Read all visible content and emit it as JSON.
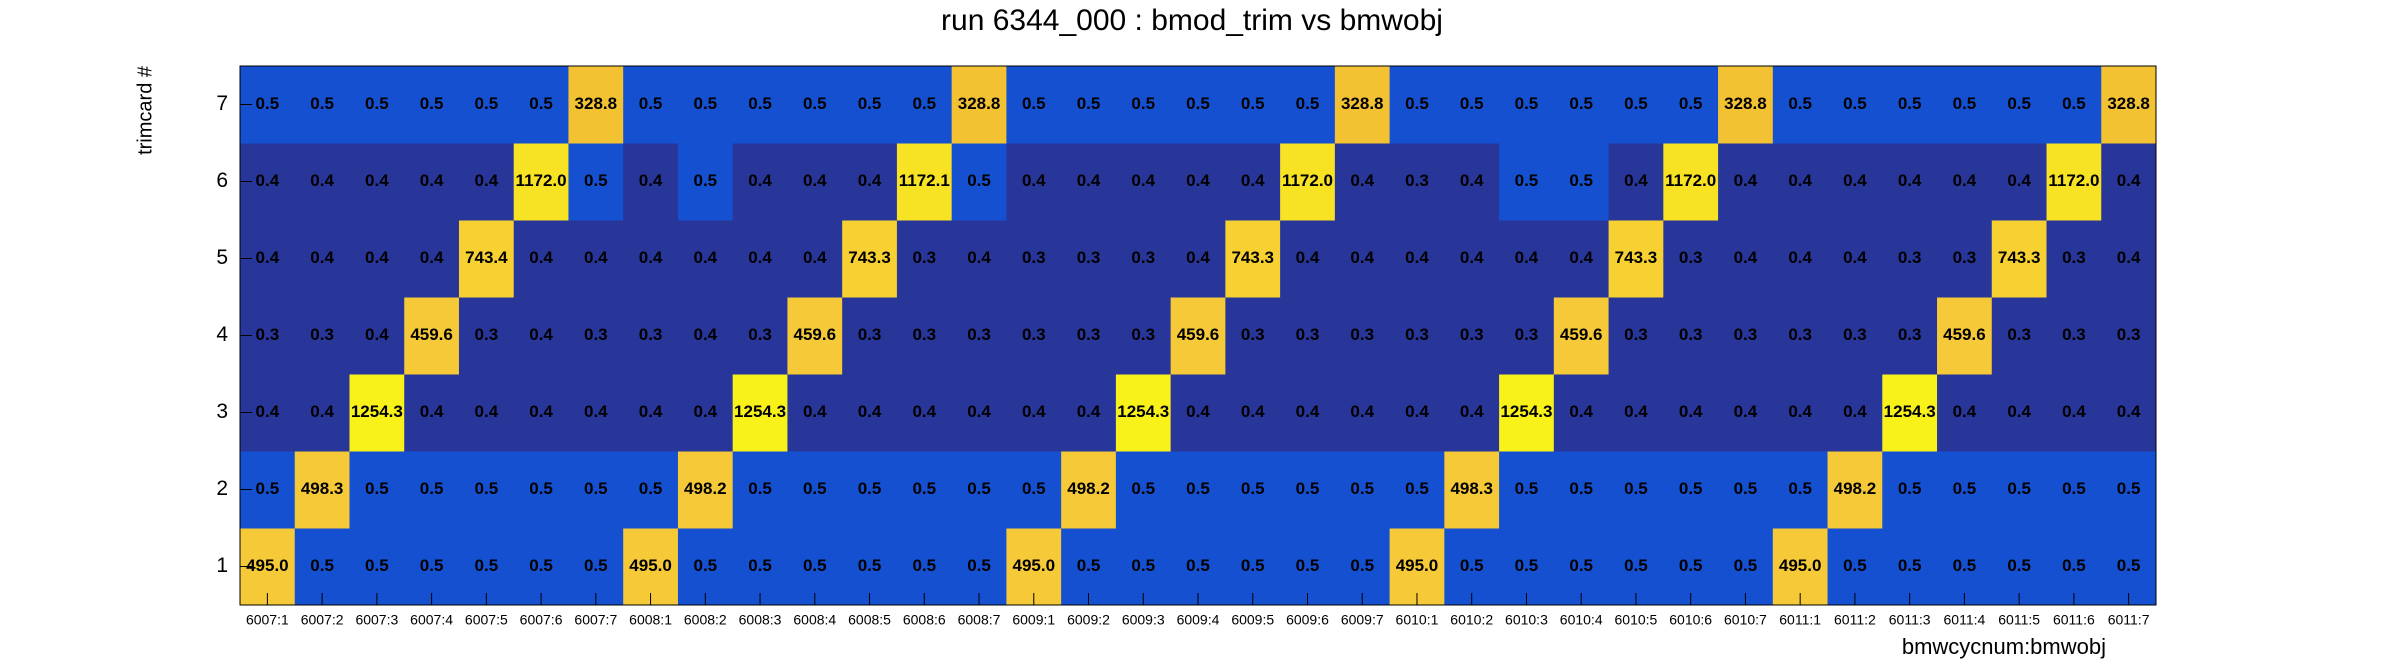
{
  "chart_data": {
    "type": "heatmap",
    "title": "run 6344_000 : bmod_trim vs bmwobj",
    "x_label": "bmwcycnum:bmwobj",
    "y_label": "trimcard #",
    "x_categories": [
      "6007:1",
      "6007:2",
      "6007:3",
      "6007:4",
      "6007:5",
      "6007:6",
      "6007:7",
      "6008:1",
      "6008:2",
      "6008:3",
      "6008:4",
      "6008:5",
      "6008:6",
      "6008:7",
      "6009:1",
      "6009:2",
      "6009:3",
      "6009:4",
      "6009:5",
      "6009:6",
      "6009:7",
      "6010:1",
      "6010:2",
      "6010:3",
      "6010:4",
      "6010:5",
      "6010:6",
      "6010:7",
      "6011:1",
      "6011:2",
      "6011:3",
      "6011:4",
      "6011:5",
      "6011:6",
      "6011:7"
    ],
    "y_categories": [
      "1",
      "2",
      "3",
      "4",
      "5",
      "6",
      "7"
    ],
    "values": [
      [
        495.0,
        0.5,
        0.5,
        0.5,
        0.5,
        0.5,
        0.5,
        495.0,
        0.5,
        0.5,
        0.5,
        0.5,
        0.5,
        0.5,
        495.0,
        0.5,
        0.5,
        0.5,
        0.5,
        0.5,
        0.5,
        495.0,
        0.5,
        0.5,
        0.5,
        0.5,
        0.5,
        0.5,
        495.0,
        0.5,
        0.5,
        0.5,
        0.5,
        0.5,
        0.5
      ],
      [
        0.5,
        498.3,
        0.5,
        0.5,
        0.5,
        0.5,
        0.5,
        0.5,
        498.2,
        0.5,
        0.5,
        0.5,
        0.5,
        0.5,
        0.5,
        498.2,
        0.5,
        0.5,
        0.5,
        0.5,
        0.5,
        0.5,
        498.3,
        0.5,
        0.5,
        0.5,
        0.5,
        0.5,
        0.5,
        498.2,
        0.5,
        0.5,
        0.5,
        0.5,
        0.5
      ],
      [
        0.4,
        0.4,
        1254.3,
        0.4,
        0.4,
        0.4,
        0.4,
        0.4,
        0.4,
        1254.3,
        0.4,
        0.4,
        0.4,
        0.4,
        0.4,
        0.4,
        1254.3,
        0.4,
        0.4,
        0.4,
        0.4,
        0.4,
        0.4,
        1254.3,
        0.4,
        0.4,
        0.4,
        0.4,
        0.4,
        0.4,
        1254.3,
        0.4,
        0.4,
        0.4,
        0.4
      ],
      [
        0.3,
        0.3,
        0.4,
        459.6,
        0.3,
        0.4,
        0.3,
        0.3,
        0.4,
        0.3,
        459.6,
        0.3,
        0.3,
        0.3,
        0.3,
        0.3,
        0.3,
        459.6,
        0.3,
        0.3,
        0.3,
        0.3,
        0.3,
        0.3,
        459.6,
        0.3,
        0.3,
        0.3,
        0.3,
        0.3,
        0.3,
        459.6,
        0.3,
        0.3,
        0.3
      ],
      [
        0.4,
        0.4,
        0.4,
        0.4,
        743.4,
        0.4,
        0.4,
        0.4,
        0.4,
        0.4,
        0.4,
        743.3,
        0.3,
        0.4,
        0.3,
        0.3,
        0.3,
        0.4,
        743.3,
        0.4,
        0.4,
        0.4,
        0.4,
        0.4,
        0.4,
        743.3,
        0.3,
        0.4,
        0.4,
        0.4,
        0.3,
        0.3,
        743.3,
        0.3,
        0.4
      ],
      [
        0.4,
        0.4,
        0.4,
        0.4,
        0.4,
        1172.0,
        0.5,
        0.4,
        0.5,
        0.4,
        0.4,
        0.4,
        1172.1,
        0.5,
        0.4,
        0.4,
        0.4,
        0.4,
        0.4,
        1172.0,
        0.4,
        0.3,
        0.4,
        0.5,
        0.5,
        0.4,
        1172.0,
        0.4,
        0.4,
        0.4,
        0.4,
        0.4,
        0.4,
        1172.0,
        0.4
      ],
      [
        0.5,
        0.5,
        0.5,
        0.5,
        0.5,
        0.5,
        328.8,
        0.5,
        0.5,
        0.5,
        0.5,
        0.5,
        0.5,
        328.8,
        0.5,
        0.5,
        0.5,
        0.5,
        0.5,
        0.5,
        328.8,
        0.5,
        0.5,
        0.5,
        0.5,
        0.5,
        0.5,
        328.8,
        0.5,
        0.5,
        0.5,
        0.5,
        0.5,
        0.5,
        328.8
      ]
    ],
    "value_labels": [
      [
        "495.0",
        "0.5",
        "0.5",
        "0.5",
        "0.5",
        "0.5",
        "0.5",
        "495.0",
        "0.5",
        "0.5",
        "0.5",
        "0.5",
        "0.5",
        "0.5",
        "495.0",
        "0.5",
        "0.5",
        "0.5",
        "0.5",
        "0.5",
        "0.5",
        "495.0",
        "0.5",
        "0.5",
        "0.5",
        "0.5",
        "0.5",
        "0.5",
        "495.0",
        "0.5",
        "0.5",
        "0.5",
        "0.5",
        "0.5",
        "0.5"
      ],
      [
        "0.5",
        "498.3",
        "0.5",
        "0.5",
        "0.5",
        "0.5",
        "0.5",
        "0.5",
        "498.2",
        "0.5",
        "0.5",
        "0.5",
        "0.5",
        "0.5",
        "0.5",
        "498.2",
        "0.5",
        "0.5",
        "0.5",
        "0.5",
        "0.5",
        "0.5",
        "498.3",
        "0.5",
        "0.5",
        "0.5",
        "0.5",
        "0.5",
        "0.5",
        "498.2",
        "0.5",
        "0.5",
        "0.5",
        "0.5",
        "0.5"
      ],
      [
        "0.4",
        "0.4",
        "1254.3",
        "0.4",
        "0.4",
        "0.4",
        "0.4",
        "0.4",
        "0.4",
        "1254.3",
        "0.4",
        "0.4",
        "0.4",
        "0.4",
        "0.4",
        "0.4",
        "1254.3",
        "0.4",
        "0.4",
        "0.4",
        "0.4",
        "0.4",
        "0.4",
        "1254.3",
        "0.4",
        "0.4",
        "0.4",
        "0.4",
        "0.4",
        "0.4",
        "1254.3",
        "0.4",
        "0.4",
        "0.4",
        "0.4"
      ],
      [
        "0.3",
        "0.3",
        "0.4",
        "459.6",
        "0.3",
        "0.4",
        "0.3",
        "0.3",
        "0.4",
        "0.3",
        "459.6",
        "0.3",
        "0.3",
        "0.3",
        "0.3",
        "0.3",
        "0.3",
        "459.6",
        "0.3",
        "0.3",
        "0.3",
        "0.3",
        "0.3",
        "0.3",
        "459.6",
        "0.3",
        "0.3",
        "0.3",
        "0.3",
        "0.3",
        "0.3",
        "459.6",
        "0.3",
        "0.3",
        "0.3"
      ],
      [
        "0.4",
        "0.4",
        "0.4",
        "0.4",
        "743.4",
        "0.4",
        "0.4",
        "0.4",
        "0.4",
        "0.4",
        "0.4",
        "743.3",
        "0.3",
        "0.4",
        "0.3",
        "0.3",
        "0.3",
        "0.4",
        "743.3",
        "0.4",
        "0.4",
        "0.4",
        "0.4",
        "0.4",
        "0.4",
        "743.3",
        "0.3",
        "0.4",
        "0.4",
        "0.4",
        "0.3",
        "0.3",
        "743.3",
        "0.3",
        "0.4"
      ],
      [
        "0.4",
        "0.4",
        "0.4",
        "0.4",
        "0.4",
        "1172.0",
        "0.5",
        "0.4",
        "0.5",
        "0.4",
        "0.4",
        "0.4",
        "1172.1",
        "0.5",
        "0.4",
        "0.4",
        "0.4",
        "0.4",
        "0.4",
        "1172.0",
        "0.4",
        "0.3",
        "0.4",
        "0.5",
        "0.5",
        "0.4",
        "1172.0",
        "0.4",
        "0.4",
        "0.4",
        "0.4",
        "0.4",
        "0.4",
        "1172.0",
        "0.4"
      ],
      [
        "0.5",
        "0.5",
        "0.5",
        "0.5",
        "0.5",
        "0.5",
        "328.8",
        "0.5",
        "0.5",
        "0.5",
        "0.5",
        "0.5",
        "0.5",
        "328.8",
        "0.5",
        "0.5",
        "0.5",
        "0.5",
        "0.5",
        "0.5",
        "328.8",
        "0.5",
        "0.5",
        "0.5",
        "0.5",
        "0.5",
        "0.5",
        "328.8",
        "0.5",
        "0.5",
        "0.5",
        "0.5",
        "0.5",
        "0.5",
        "328.8"
      ]
    ],
    "z_log": true,
    "palette": [
      "#28369a",
      "#1550d0",
      "#1a6ad6",
      "#1e82d8",
      "#1f99c8",
      "#22aab0",
      "#36b598",
      "#4fbd80",
      "#6cc26a",
      "#8ac456",
      "#a6c446",
      "#bfc23a",
      "#d2be32",
      "#e2bc30",
      "#ecbd30",
      "#f3c233",
      "#f5c937",
      "#f7d132",
      "#f8e224",
      "#f9f21a"
    ]
  }
}
